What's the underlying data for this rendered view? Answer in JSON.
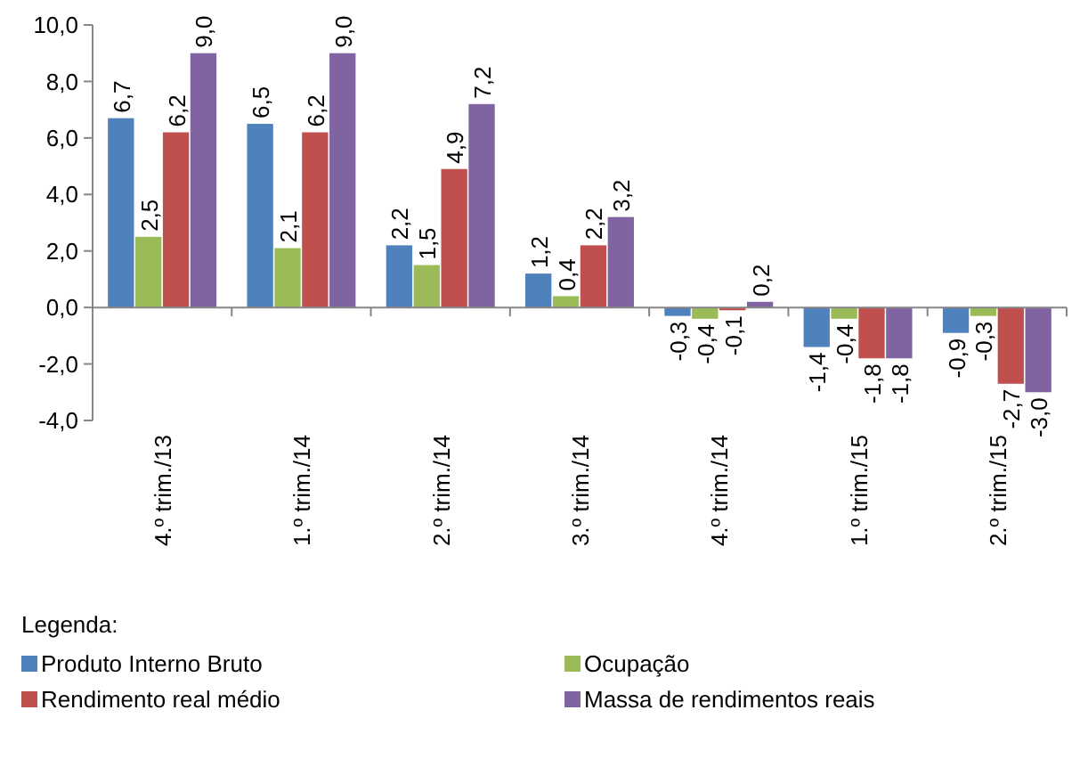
{
  "chart_data": {
    "type": "bar",
    "categories": [
      "4.º trim./13",
      "1.º trim./14",
      "2.º trim./14",
      "3.º trim./14",
      "4.º trim./14",
      "1.º trim./15",
      "2.º trim./15"
    ],
    "series": [
      {
        "name": "Produto Interno Bruto",
        "color": "#4f81bd",
        "values": [
          6.7,
          6.5,
          2.2,
          1.2,
          -0.3,
          -1.4,
          -0.9
        ],
        "value_labels": [
          "6,7",
          "6,5",
          "2,2",
          "1,2",
          "-0,3",
          "-1,4",
          "-0,9"
        ]
      },
      {
        "name": "Ocupação",
        "color": "#9bbb59",
        "values": [
          2.5,
          2.1,
          1.5,
          0.4,
          -0.4,
          -0.4,
          -0.3
        ],
        "value_labels": [
          "2,5",
          "2,1",
          "1,5",
          "0,4",
          "-0,4",
          "-0,4",
          "-0,3"
        ]
      },
      {
        "name": "Rendimento real médio",
        "color": "#c0504d",
        "values": [
          6.2,
          6.2,
          4.9,
          2.2,
          -0.1,
          -1.8,
          -2.7
        ],
        "value_labels": [
          "6,2",
          "6,2",
          "4,9",
          "2,2",
          "-0,1",
          "-1,8",
          "-2,7"
        ]
      },
      {
        "name": "Massa de rendimentos reais",
        "color": "#8064a2",
        "values": [
          9.0,
          9.0,
          7.2,
          3.2,
          0.2,
          -1.8,
          -3.0
        ],
        "value_labels": [
          "9,0",
          "9,0",
          "7,2",
          "3,2",
          "0,2",
          "-1,8",
          "-3,0"
        ]
      }
    ],
    "ylim": [
      -4,
      10
    ],
    "yticks": [
      {
        "value": -4,
        "label": "-4,0"
      },
      {
        "value": -2,
        "label": "-2,0"
      },
      {
        "value": 0,
        "label": "0,0"
      },
      {
        "value": 2,
        "label": "2,0"
      },
      {
        "value": 4,
        "label": "4,0"
      },
      {
        "value": 6,
        "label": "6,0"
      },
      {
        "value": 8,
        "label": "8,0"
      },
      {
        "value": 10,
        "label": "10,0"
      }
    ],
    "legend_title": "Legenda:",
    "legend": "bottom"
  }
}
